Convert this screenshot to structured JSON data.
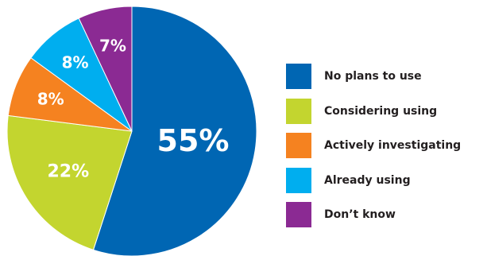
{
  "chart_data": {
    "type": "pie",
    "slices": [
      {
        "label": "No plans to use",
        "value": 55,
        "display": "55%",
        "color": "#0066b3"
      },
      {
        "label": "Considering using",
        "value": 22,
        "display": "22%",
        "color": "#c3d52f"
      },
      {
        "label": "Actively investigating",
        "value": 8,
        "display": "8%",
        "color": "#f58220"
      },
      {
        "label": "Already using",
        "value": 8,
        "display": "8%",
        "color": "#00aeef"
      },
      {
        "label": "Don’t know",
        "value": 7,
        "display": "7%",
        "color": "#8b2a93"
      }
    ],
    "legend_position": "right",
    "start_angle": "12 o'clock",
    "direction": "clockwise"
  }
}
